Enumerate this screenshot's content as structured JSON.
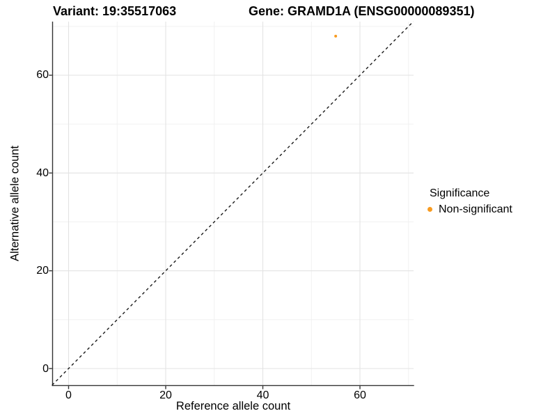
{
  "title": {
    "variant": "Variant: 19:35517063",
    "gene": "Gene: GRAMD1A (ENSG00000089351)"
  },
  "chart_data": {
    "type": "scatter",
    "xlabel": "Reference allele count",
    "ylabel": "Alternative allele count",
    "xlim": [
      -3.4,
      71
    ],
    "ylim": [
      -3.4,
      71
    ],
    "x_ticks": [
      0,
      20,
      40,
      60
    ],
    "y_ticks": [
      0,
      20,
      40,
      60
    ],
    "x_minor_ticks": [
      10,
      30,
      50,
      70
    ],
    "y_minor_ticks": [
      10,
      30,
      50,
      70
    ],
    "grid": "major-and-minor",
    "points": [
      {
        "x": 55,
        "y": 68,
        "series": "Non-significant",
        "color": "#F89B20"
      }
    ],
    "identity_line": {
      "type": "abline",
      "slope": 1,
      "intercept": 0,
      "style": "dashed",
      "color": "#1A1A1A"
    },
    "legend": {
      "title": "Significance",
      "position": "right",
      "entries": [
        {
          "label": "Non-significant",
          "color": "#F89B20"
        }
      ]
    }
  },
  "colors": {
    "point_orange": "#F89B20",
    "axis_line": "#333333",
    "grid_major": "#E3E3E3",
    "grid_minor": "#F1F1F1",
    "background": "#FFFFFF"
  }
}
